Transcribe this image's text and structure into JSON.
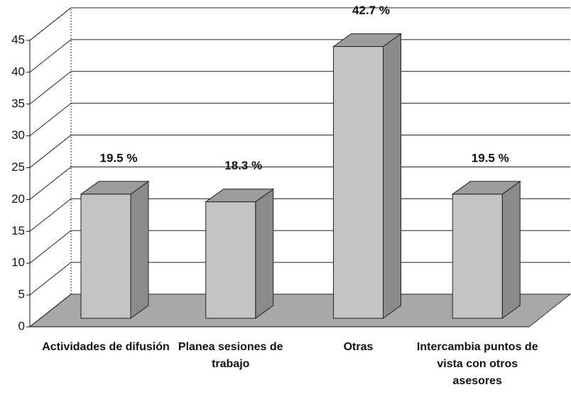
{
  "chart_data": {
    "type": "bar3d",
    "categories": [
      "Actividades de difusión",
      "Planea sesiones de trabajo",
      "Otras",
      "Intercambia puntos de vista con otros asesores"
    ],
    "values": [
      19.5,
      18.3,
      42.7,
      19.5
    ],
    "value_labels": [
      "19.5 %",
      "18.3 %",
      "42.7 %",
      "19.5 %"
    ],
    "color": "#c4c4c4",
    "ylim": [
      0,
      45
    ],
    "yticks": [
      0,
      5,
      10,
      15,
      20,
      25,
      30,
      35,
      40,
      45
    ],
    "grid": true
  }
}
